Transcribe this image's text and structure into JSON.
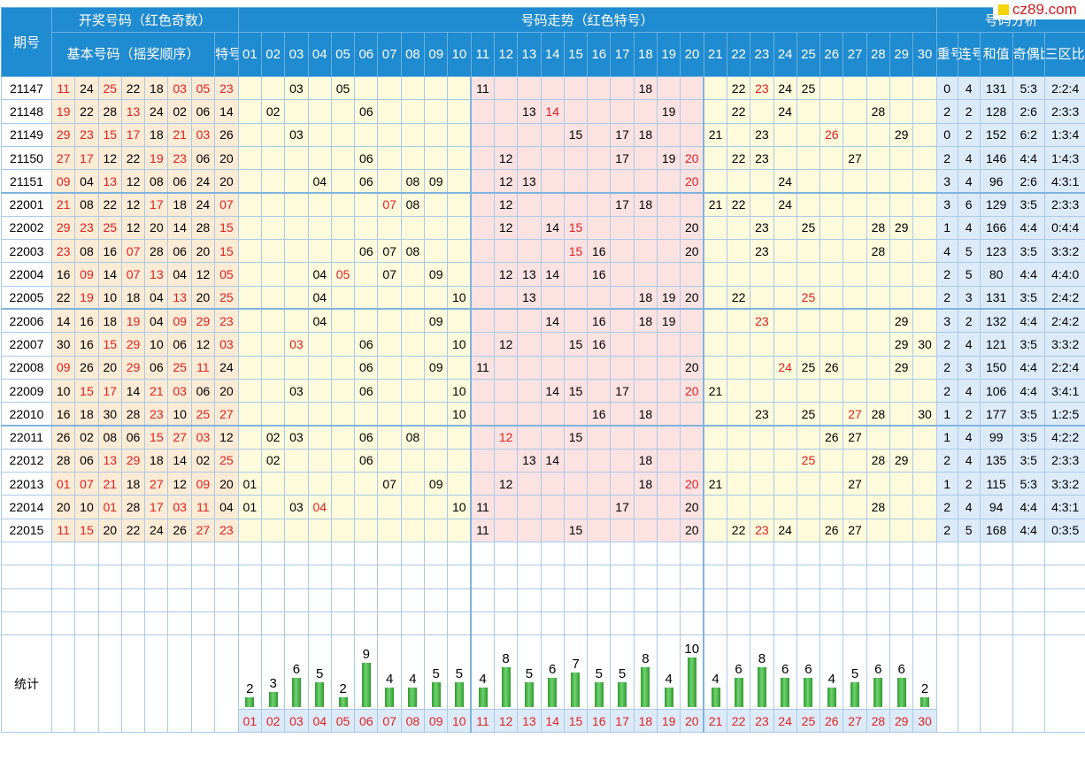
{
  "logo": "cz89.com",
  "header": {
    "period": "期号",
    "draw_group": "开奖号码（红色奇数）",
    "basic": "基本号码（摇奖顺序）",
    "special": "特号",
    "trend": "号码走势（红色特号）",
    "analysis": "号码分析",
    "repeat": "重号",
    "consecutive": "连号",
    "sum": "和值",
    "odd_even": "奇偶比例",
    "zones": "三区比例",
    "stat_label": "统计"
  },
  "numbers": [
    "01",
    "02",
    "03",
    "04",
    "05",
    "06",
    "07",
    "08",
    "09",
    "10",
    "11",
    "12",
    "13",
    "14",
    "15",
    "16",
    "17",
    "18",
    "19",
    "20",
    "21",
    "22",
    "23",
    "24",
    "25",
    "26",
    "27",
    "28",
    "29",
    "30"
  ],
  "chart_data": {
    "type": "bar",
    "title": "统计",
    "categories": [
      "01",
      "02",
      "03",
      "04",
      "05",
      "06",
      "07",
      "08",
      "09",
      "10",
      "11",
      "12",
      "13",
      "14",
      "15",
      "16",
      "17",
      "18",
      "19",
      "20",
      "21",
      "22",
      "23",
      "24",
      "25",
      "26",
      "27",
      "28",
      "29",
      "30"
    ],
    "values": [
      2,
      3,
      6,
      5,
      2,
      9,
      4,
      4,
      5,
      5,
      4,
      8,
      5,
      6,
      7,
      5,
      5,
      8,
      4,
      10,
      4,
      6,
      8,
      6,
      6,
      4,
      5,
      6,
      6,
      2
    ],
    "ylim": [
      0,
      10
    ]
  },
  "rows": [
    {
      "p": "21147",
      "b": [
        "11",
        "24",
        "25",
        "22",
        "18",
        "03",
        "05"
      ],
      "s": "23",
      "r": "0",
      "c": "4",
      "sum": "131",
      "oe": "5:3",
      "z": "2:2:4"
    },
    {
      "p": "21148",
      "b": [
        "19",
        "22",
        "28",
        "13",
        "24",
        "02",
        "06"
      ],
      "s": "14",
      "r": "2",
      "c": "2",
      "sum": "128",
      "oe": "2:6",
      "z": "2:3:3"
    },
    {
      "p": "21149",
      "b": [
        "29",
        "23",
        "15",
        "17",
        "18",
        "21",
        "03"
      ],
      "s": "26",
      "r": "0",
      "c": "2",
      "sum": "152",
      "oe": "6:2",
      "z": "1:3:4"
    },
    {
      "p": "21150",
      "b": [
        "27",
        "17",
        "12",
        "22",
        "19",
        "23",
        "06"
      ],
      "s": "20",
      "r": "2",
      "c": "4",
      "sum": "146",
      "oe": "4:4",
      "z": "1:4:3"
    },
    {
      "p": "21151",
      "b": [
        "09",
        "04",
        "13",
        "12",
        "08",
        "06",
        "24"
      ],
      "s": "20",
      "r": "3",
      "c": "4",
      "sum": "96",
      "oe": "2:6",
      "z": "4:3:1"
    },
    {
      "p": "22001",
      "b": [
        "21",
        "08",
        "22",
        "12",
        "17",
        "18",
        "24"
      ],
      "s": "07",
      "r": "3",
      "c": "6",
      "sum": "129",
      "oe": "3:5",
      "z": "2:3:3"
    },
    {
      "p": "22002",
      "b": [
        "29",
        "23",
        "25",
        "12",
        "20",
        "14",
        "28"
      ],
      "s": "15",
      "r": "1",
      "c": "4",
      "sum": "166",
      "oe": "4:4",
      "z": "0:4:4"
    },
    {
      "p": "22003",
      "b": [
        "23",
        "08",
        "16",
        "07",
        "28",
        "06",
        "20"
      ],
      "s": "15",
      "r": "4",
      "c": "5",
      "sum": "123",
      "oe": "3:5",
      "z": "3:3:2"
    },
    {
      "p": "22004",
      "b": [
        "16",
        "09",
        "14",
        "07",
        "13",
        "04",
        "12"
      ],
      "s": "05",
      "r": "2",
      "c": "5",
      "sum": "80",
      "oe": "4:4",
      "z": "4:4:0"
    },
    {
      "p": "22005",
      "b": [
        "22",
        "19",
        "10",
        "18",
        "04",
        "13",
        "20"
      ],
      "s": "25",
      "r": "2",
      "c": "3",
      "sum": "131",
      "oe": "3:5",
      "z": "2:4:2"
    },
    {
      "p": "22006",
      "b": [
        "14",
        "16",
        "18",
        "19",
        "04",
        "09",
        "29"
      ],
      "s": "23",
      "r": "3",
      "c": "2",
      "sum": "132",
      "oe": "4:4",
      "z": "2:4:2"
    },
    {
      "p": "22007",
      "b": [
        "30",
        "16",
        "15",
        "29",
        "10",
        "06",
        "12"
      ],
      "s": "03",
      "r": "2",
      "c": "4",
      "sum": "121",
      "oe": "3:5",
      "z": "3:3:2"
    },
    {
      "p": "22008",
      "b": [
        "09",
        "26",
        "20",
        "29",
        "06",
        "25",
        "11"
      ],
      "s": "24",
      "r": "2",
      "c": "3",
      "sum": "150",
      "oe": "4:4",
      "z": "2:2:4"
    },
    {
      "p": "22009",
      "b": [
        "10",
        "15",
        "17",
        "14",
        "21",
        "03",
        "06"
      ],
      "s": "20",
      "r": "2",
      "c": "4",
      "sum": "106",
      "oe": "4:4",
      "z": "3:4:1"
    },
    {
      "p": "22010",
      "b": [
        "16",
        "18",
        "30",
        "28",
        "23",
        "10",
        "25"
      ],
      "s": "27",
      "r": "1",
      "c": "2",
      "sum": "177",
      "oe": "3:5",
      "z": "1:2:5"
    },
    {
      "p": "22011",
      "b": [
        "26",
        "02",
        "08",
        "06",
        "15",
        "27",
        "03"
      ],
      "s": "12",
      "r": "1",
      "c": "4",
      "sum": "99",
      "oe": "3:5",
      "z": "4:2:2"
    },
    {
      "p": "22012",
      "b": [
        "28",
        "06",
        "13",
        "29",
        "18",
        "14",
        "02"
      ],
      "s": "25",
      "r": "2",
      "c": "4",
      "sum": "135",
      "oe": "3:5",
      "z": "2:3:3"
    },
    {
      "p": "22013",
      "b": [
        "01",
        "07",
        "21",
        "18",
        "27",
        "12",
        "09"
      ],
      "s": "20",
      "r": "1",
      "c": "2",
      "sum": "115",
      "oe": "5:3",
      "z": "3:3:2"
    },
    {
      "p": "22014",
      "b": [
        "20",
        "10",
        "01",
        "28",
        "17",
        "03",
        "11"
      ],
      "s": "04",
      "r": "2",
      "c": "4",
      "sum": "94",
      "oe": "4:4",
      "z": "4:3:1"
    },
    {
      "p": "22015",
      "b": [
        "11",
        "15",
        "20",
        "22",
        "24",
        "26",
        "27"
      ],
      "s": "23",
      "r": "2",
      "c": "5",
      "sum": "168",
      "oe": "4:4",
      "z": "0:3:5"
    }
  ]
}
